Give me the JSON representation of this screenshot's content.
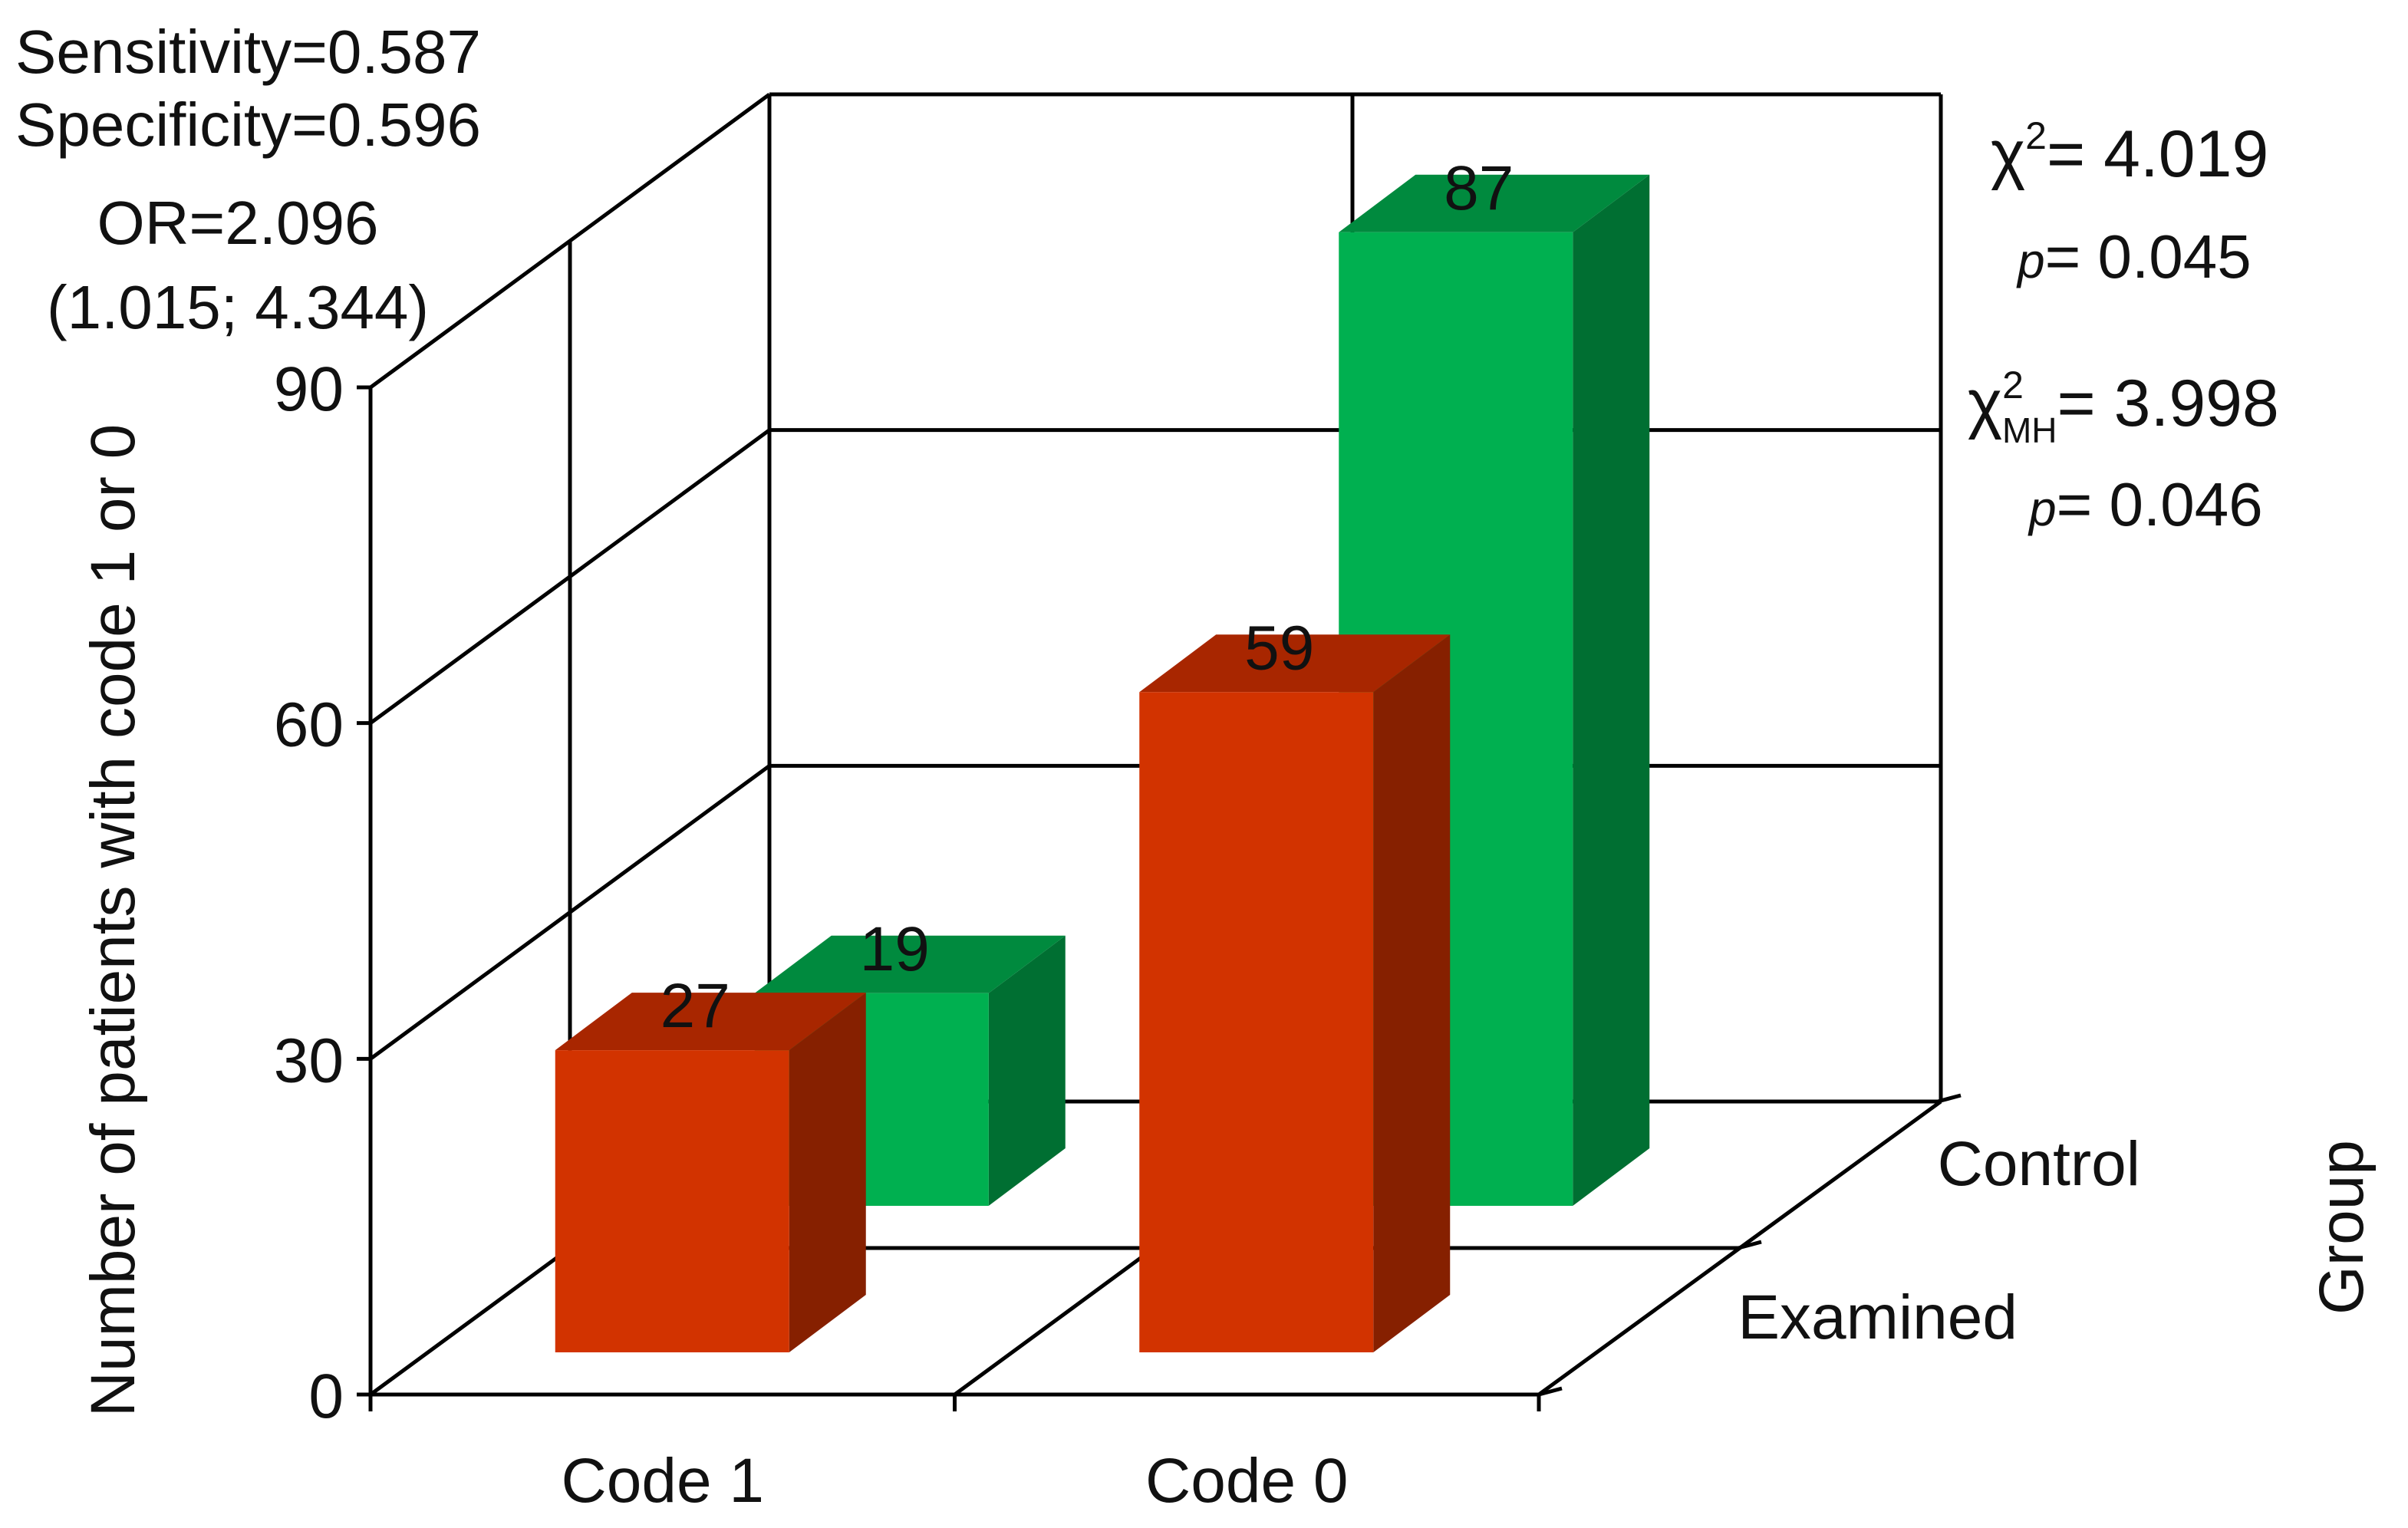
{
  "chart_data": {
    "type": "bar",
    "variant": "3d-grouped",
    "categories": [
      "Code 1",
      "Code 0"
    ],
    "series": [
      {
        "name": "Examined",
        "values": [
          27,
          59
        ]
      },
      {
        "name": "Control",
        "values": [
          19,
          87
        ]
      }
    ],
    "colors": {
      "Examined": {
        "front": "#d23300",
        "top": "#a82600",
        "side": "#862000"
      },
      "Control": {
        "front": "#00b050",
        "top": "#008a3e",
        "side": "#006f32"
      },
      "grid": "#000000"
    },
    "ylabel": "Number of patients with code 1 or 0",
    "depth_label": "Group",
    "ylim": [
      0,
      90
    ],
    "yticks": [
      0,
      30,
      60,
      90
    ],
    "grid": true,
    "data_labels": true,
    "annotations": {
      "sensitivity": "Sensitivity=0.587",
      "specificity": "Specificity=0.596",
      "or": "OR=2.096",
      "ci": "(1.015; 4.344)",
      "chi2_value": "= 4.019",
      "chi2_p": "= 0.045",
      "chi2mh_value": "=  3.998",
      "chi2mh_p": "= 0.046",
      "chi_symbol": "χ",
      "sup2": "2",
      "mh_sub": "MH",
      "p_symbol": "p"
    }
  }
}
